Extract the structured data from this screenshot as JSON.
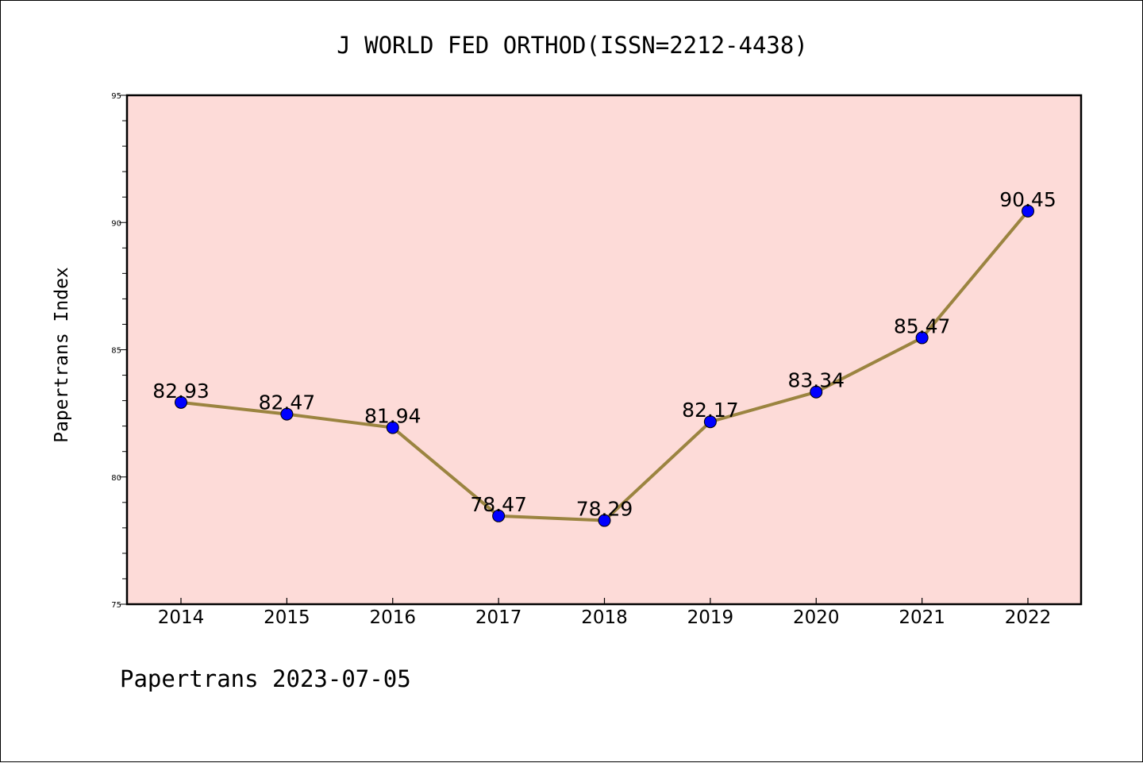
{
  "footer": {
    "text": "Papertrans 2023-07-05"
  },
  "chart_data": {
    "type": "line",
    "title": "J WORLD FED ORTHOD(ISSN=2212-4438)",
    "xlabel": "",
    "ylabel": "Papertrans Index",
    "categories": [
      "2014",
      "2015",
      "2016",
      "2017",
      "2018",
      "2019",
      "2020",
      "2021",
      "2022"
    ],
    "series": [
      {
        "values": [
          82.93,
          82.47,
          81.94,
          78.47,
          78.29,
          82.17,
          83.34,
          85.47,
          90.45
        ],
        "data_labels": [
          "82.93",
          "82.47",
          "81.94",
          "78.47",
          "78.29",
          "82.17",
          "83.34",
          "85.47",
          "90.45"
        ]
      }
    ],
    "ylim": [
      75,
      95
    ],
    "yticks": [
      "75",
      "80",
      "85",
      "90",
      "95"
    ],
    "grid": false,
    "legend": "none",
    "colors": {
      "plot_background": "#fddbd8",
      "line": "#9b8440",
      "marker": "#0000ff",
      "marker_edge": "#000000"
    }
  }
}
